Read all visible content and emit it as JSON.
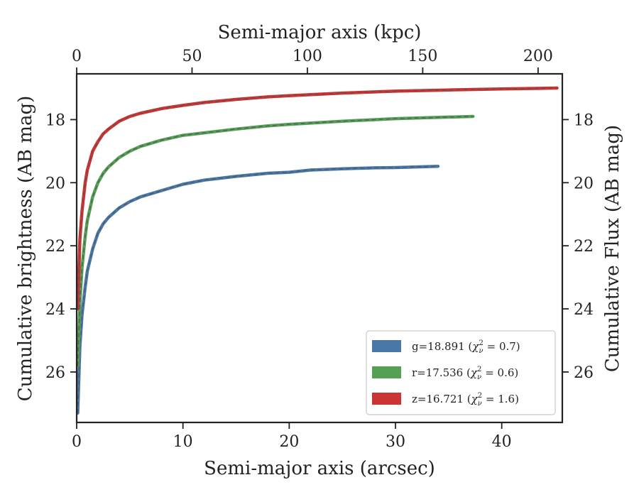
{
  "chart_data": {
    "type": "line",
    "xlabel": "Semi-major axis (arcsec)",
    "ylabel": "Cumulative brightness (AB mag)",
    "top_xlabel": "Semi-major axis (kpc)",
    "right_ylabel": "Cumulative Flux (AB mag)",
    "xlim": [
      0,
      45.7
    ],
    "ylim": [
      27.6,
      16.55
    ],
    "top_xlim": [
      0,
      210.5
    ],
    "x_ticks": [
      "0",
      "10",
      "20",
      "30",
      "40"
    ],
    "top_x_ticks": [
      "0",
      "50",
      "100",
      "150",
      "200"
    ],
    "y_ticks": [
      "18",
      "20",
      "22",
      "24",
      "26"
    ],
    "grid": false,
    "legend_position": "lower right",
    "series": [
      {
        "name": "g=18.891 (χ²ᵥ = 0.7)",
        "legend_main": "g=18.891 (",
        "legend_chi": "χ",
        "legend_sub": "ν",
        "legend_sup": "2",
        "legend_tail": " = 0.7)",
        "color": "#4878a8",
        "x": [
          0.1,
          0.3,
          0.5,
          0.8,
          1.0,
          1.5,
          2.0,
          2.5,
          3.0,
          4.0,
          5.0,
          6.0,
          8.0,
          10.0,
          12.0,
          15.0,
          18.0,
          20.0,
          22.0,
          25.0,
          28.0,
          30.0,
          32.0,
          34.0
        ],
        "y": [
          27.3,
          25.2,
          24.2,
          23.3,
          22.8,
          22.1,
          21.6,
          21.3,
          21.1,
          20.8,
          20.6,
          20.45,
          20.25,
          20.05,
          19.92,
          19.8,
          19.7,
          19.67,
          19.6,
          19.56,
          19.53,
          19.52,
          19.5,
          19.48
        ]
      },
      {
        "name": "r=17.536 (χ²ᵥ = 0.6)",
        "legend_main": "r=17.536 (",
        "legend_chi": "χ",
        "legend_sub": "ν",
        "legend_sup": "2",
        "legend_tail": " = 0.6)",
        "color": "#55a055",
        "x": [
          0.1,
          0.3,
          0.5,
          0.8,
          1.0,
          1.5,
          2.0,
          2.5,
          3.0,
          4.0,
          5.0,
          6.0,
          8.0,
          10.0,
          12.0,
          15.0,
          18.0,
          20.0,
          25.0,
          30.0,
          35.0,
          37.3
        ],
        "y": [
          25.8,
          23.8,
          22.7,
          21.7,
          21.2,
          20.45,
          20.0,
          19.7,
          19.5,
          19.2,
          19.0,
          18.85,
          18.65,
          18.5,
          18.42,
          18.3,
          18.2,
          18.15,
          18.05,
          17.97,
          17.92,
          17.9
        ]
      },
      {
        "name": "z=16.721 (χ²ᵥ = 1.6)",
        "legend_main": "z=16.721 (",
        "legend_chi": "χ",
        "legend_sub": "ν",
        "legend_sup": "2",
        "legend_tail": " = 1.6)",
        "color": "#cc3333",
        "x": [
          0.1,
          0.3,
          0.5,
          0.8,
          1.0,
          1.5,
          2.0,
          2.5,
          3.0,
          4.0,
          5.0,
          6.0,
          8.0,
          10.0,
          12.0,
          15.0,
          18.0,
          20.0,
          25.0,
          30.0,
          35.0,
          40.0,
          45.2
        ],
        "y": [
          24.0,
          21.8,
          20.9,
          20.0,
          19.6,
          19.0,
          18.7,
          18.45,
          18.3,
          18.05,
          17.9,
          17.8,
          17.65,
          17.55,
          17.46,
          17.36,
          17.28,
          17.24,
          17.16,
          17.1,
          17.06,
          17.03,
          17.0
        ]
      }
    ]
  }
}
